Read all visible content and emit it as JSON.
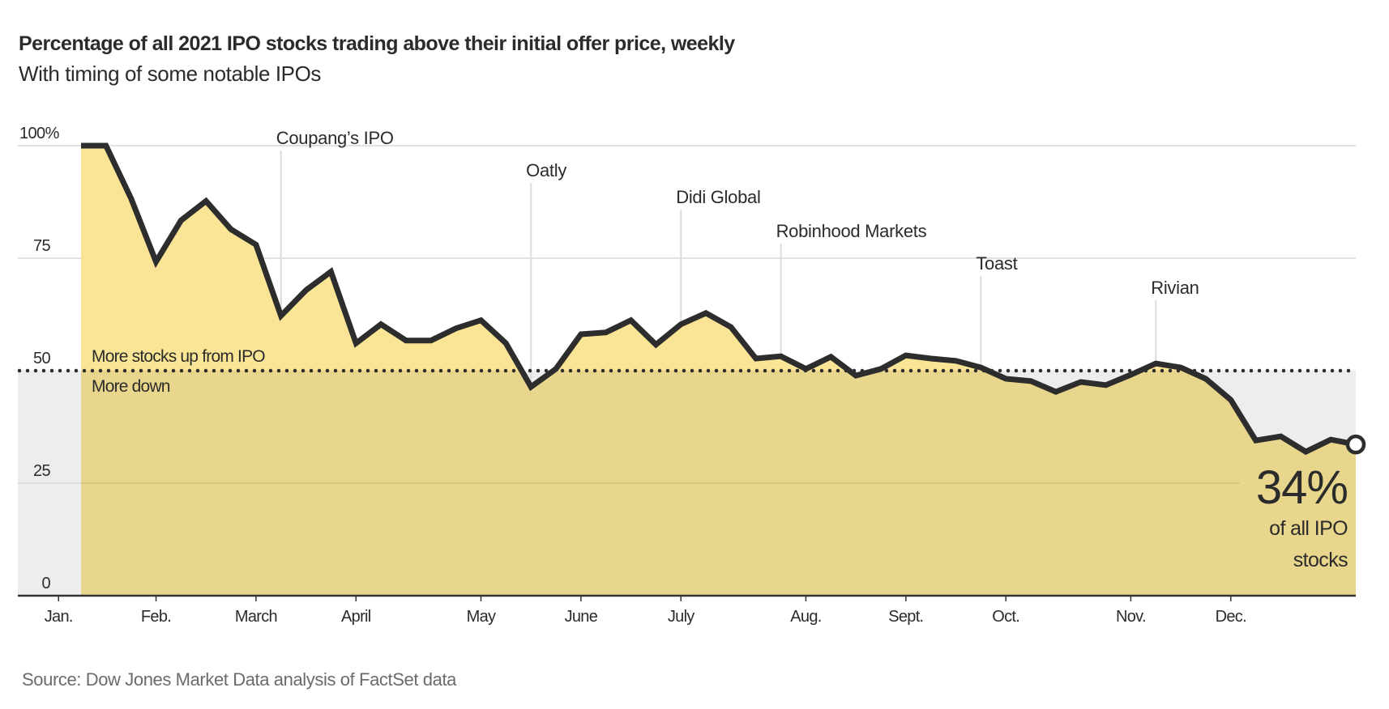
{
  "chart_data": {
    "type": "area",
    "title": "Percentage of all 2021 IPO stocks trading above their initial offer price, weekly",
    "subtitle": "With timing of some notable IPOs",
    "xlabel": "",
    "ylabel": "",
    "x_unit": "weeks since first weekly observation (Jan. 2021)",
    "ylim": [
      0,
      100
    ],
    "xlim": [
      -1,
      51
    ],
    "grid": true,
    "reference_line": {
      "value": 50,
      "label_above": "More stocks up from IPO",
      "label_below": "More down",
      "style": "dotted"
    },
    "yticks": [
      {
        "value": 0,
        "label": "0"
      },
      {
        "value": 25,
        "label": "25"
      },
      {
        "value": 50,
        "label": "50"
      },
      {
        "value": 75,
        "label": "75"
      },
      {
        "value": 100,
        "label": "100%"
      }
    ],
    "xticks": [
      {
        "value": -0.9,
        "label": "Jan."
      },
      {
        "value": 3,
        "label": "Feb."
      },
      {
        "value": 7,
        "label": "March"
      },
      {
        "value": 11,
        "label": "April"
      },
      {
        "value": 16,
        "label": "May"
      },
      {
        "value": 20,
        "label": "June"
      },
      {
        "value": 24,
        "label": "July"
      },
      {
        "value": 29,
        "label": "Aug."
      },
      {
        "value": 33,
        "label": "Sept."
      },
      {
        "value": 37,
        "label": "Oct."
      },
      {
        "value": 42,
        "label": "Nov."
      },
      {
        "value": 46,
        "label": "Dec."
      }
    ],
    "series": [
      {
        "name": "Share of 2021 IPO stocks above offer price (%)",
        "values": [
          100,
          100,
          88.3,
          74.2,
          83.4,
          87.7,
          81.4,
          78.0,
          62.2,
          67.9,
          72.0,
          56.1,
          60.3,
          56.7,
          56.7,
          59.4,
          61.2,
          56.1,
          46.4,
          50.4,
          58.1,
          58.5,
          61.2,
          55.8,
          60.3,
          62.8,
          59.7,
          52.7,
          53.2,
          50.4,
          53.1,
          48.9,
          50.4,
          53.4,
          52.7,
          52.2,
          50.7,
          48.2,
          47.7,
          45.3,
          47.5,
          46.8,
          49.1,
          51.6,
          50.7,
          48.2,
          43.5,
          34.5,
          35.4,
          32.0,
          34.7,
          33.6
        ]
      }
    ],
    "annotations": [
      {
        "week": 8,
        "label": "Coupang’s IPO"
      },
      {
        "week": 18,
        "label": "Oatly"
      },
      {
        "week": 24,
        "label": "Didi Global"
      },
      {
        "week": 28,
        "label": "Robinhood Markets"
      },
      {
        "week": 36,
        "label": "Toast"
      },
      {
        "week": 43,
        "label": "Rivian"
      }
    ],
    "end_label": {
      "value": "34%",
      "line1": "of all IPO",
      "line2": "stocks"
    },
    "source": "Source: Dow Jones Market Data analysis of FactSet data",
    "colors": {
      "line": "#2d2d2d",
      "fill_above": "#fae596",
      "fill_below": "#e9d68d",
      "background_below": "#ededef",
      "grid": "#d8d8d8",
      "annotation_line": "#dcdcdc",
      "axis": "#333333"
    }
  }
}
